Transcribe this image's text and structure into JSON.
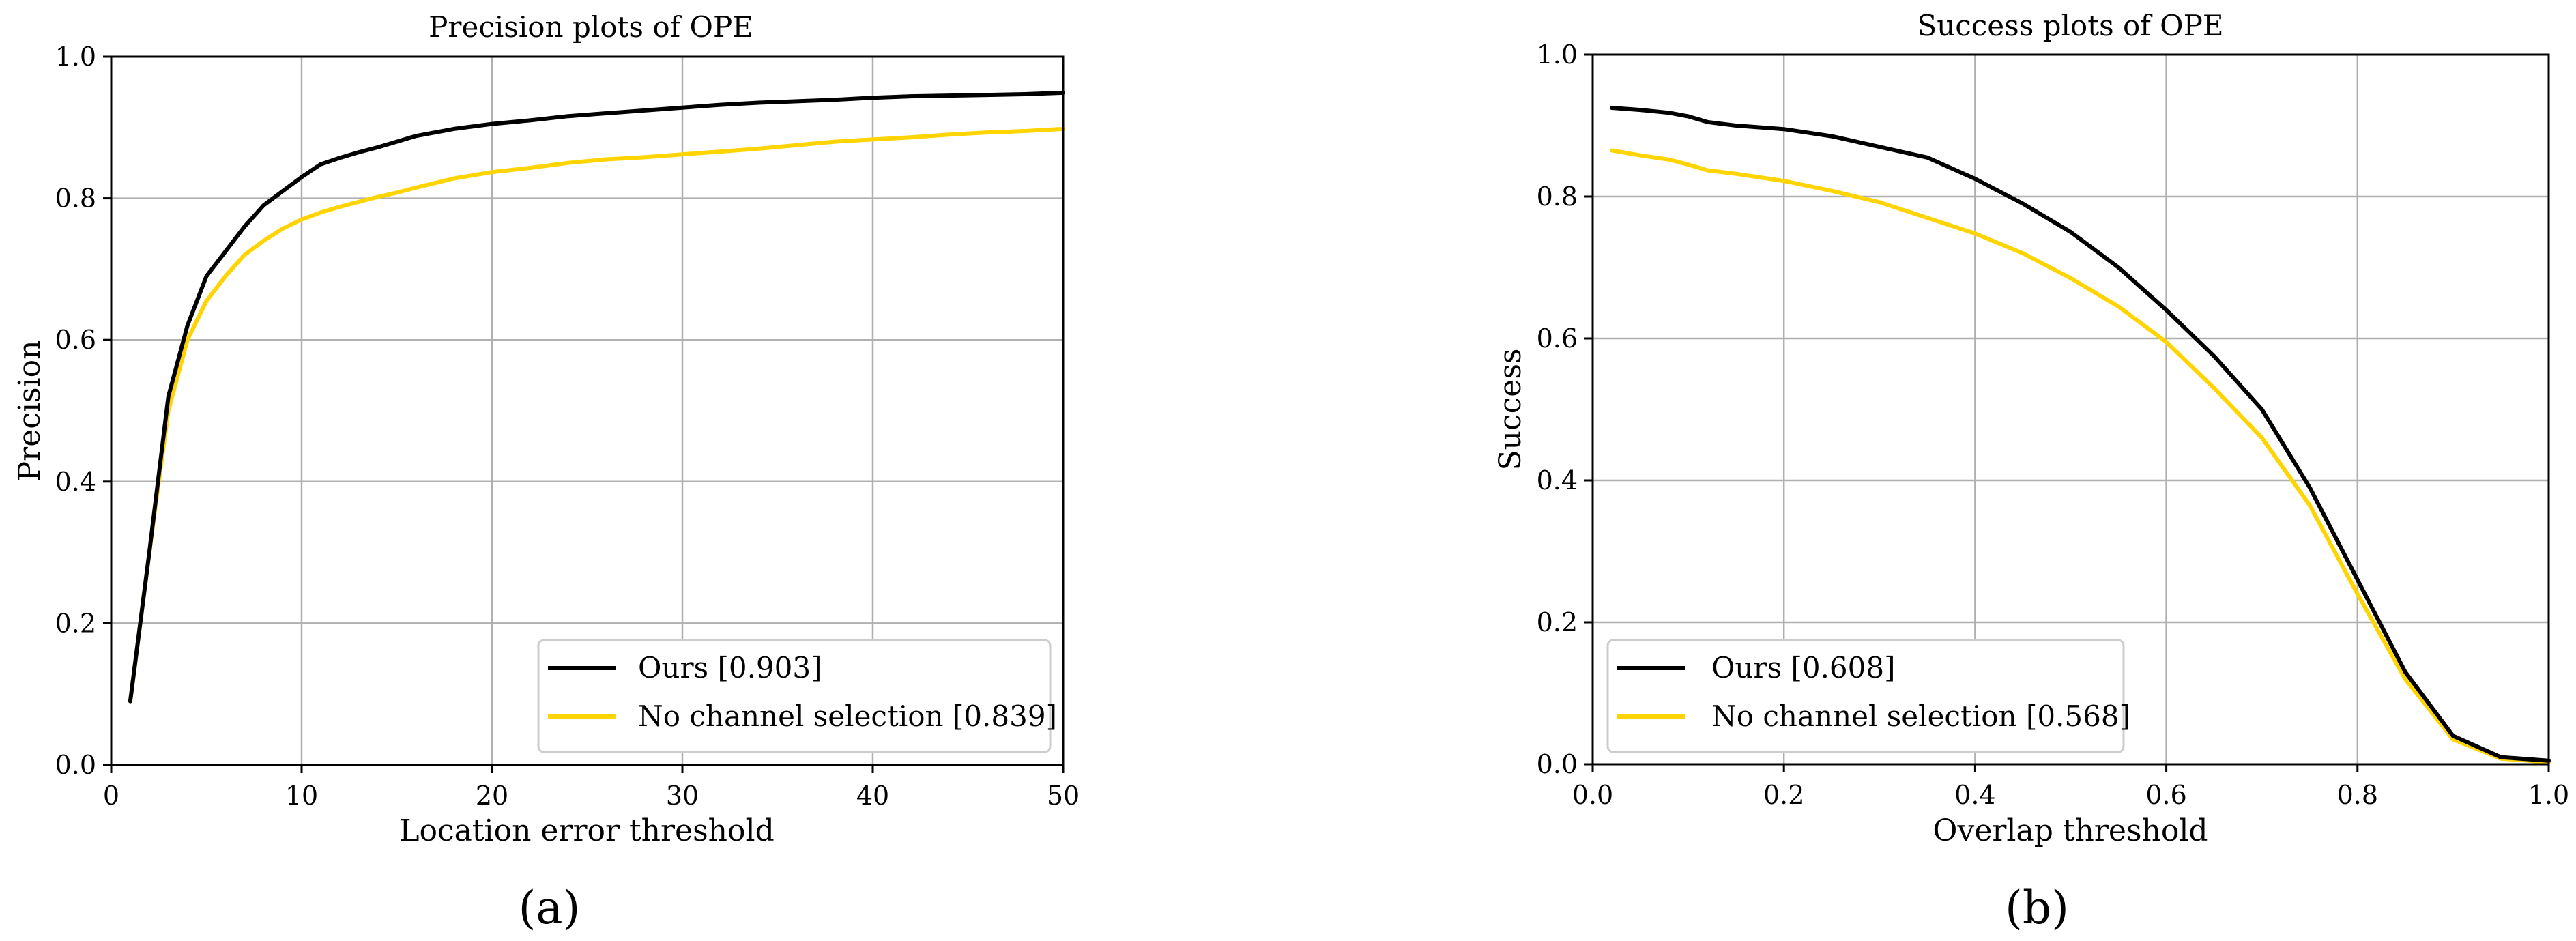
{
  "chart_data": [
    {
      "panel": "a",
      "panel_label": "(a)",
      "type": "line",
      "title": "Precision plots of OPE",
      "xlabel": "Location error threshold",
      "ylabel": "Precision",
      "xlim": [
        0,
        50
      ],
      "ylim": [
        0,
        1.0
      ],
      "xticks": [
        0,
        10,
        20,
        30,
        40,
        50
      ],
      "xtick_labels": [
        "0",
        "10",
        "20",
        "30",
        "40",
        "50"
      ],
      "yticks": [
        0,
        0.2,
        0.4,
        0.6,
        0.8,
        1.0
      ],
      "ytick_labels": [
        "0.0",
        "0.2",
        "0.4",
        "0.6",
        "0.8",
        "1.0"
      ],
      "grid": true,
      "legend_position": "bottom-right",
      "series": [
        {
          "name": "Ours [0.903]",
          "color": "#000000",
          "x": [
            1,
            2,
            3,
            4,
            5,
            6,
            7,
            8,
            9,
            10,
            11,
            12,
            13,
            14,
            15,
            16,
            18,
            20,
            22,
            24,
            26,
            28,
            30,
            32,
            34,
            36,
            38,
            40,
            42,
            44,
            46,
            48,
            50
          ],
          "y": [
            0.09,
            0.3,
            0.52,
            0.62,
            0.69,
            0.725,
            0.76,
            0.79,
            0.81,
            0.83,
            0.848,
            0.857,
            0.865,
            0.872,
            0.88,
            0.888,
            0.898,
            0.905,
            0.91,
            0.916,
            0.92,
            0.924,
            0.928,
            0.932,
            0.935,
            0.937,
            0.939,
            0.942,
            0.944,
            0.945,
            0.946,
            0.947,
            0.949
          ]
        },
        {
          "name": "No channel selection [0.839]",
          "color": "#FFD400",
          "x": [
            1,
            2,
            3,
            4,
            5,
            6,
            7,
            8,
            9,
            10,
            11,
            12,
            13,
            14,
            15,
            16,
            18,
            20,
            22,
            24,
            26,
            28,
            30,
            32,
            34,
            36,
            38,
            40,
            42,
            44,
            46,
            48,
            50
          ],
          "y": [
            0.09,
            0.3,
            0.5,
            0.6,
            0.655,
            0.69,
            0.72,
            0.74,
            0.757,
            0.77,
            0.78,
            0.788,
            0.795,
            0.802,
            0.808,
            0.815,
            0.828,
            0.837,
            0.843,
            0.85,
            0.855,
            0.858,
            0.862,
            0.866,
            0.87,
            0.875,
            0.88,
            0.883,
            0.886,
            0.89,
            0.893,
            0.895,
            0.898
          ]
        }
      ]
    },
    {
      "panel": "b",
      "panel_label": "(b)",
      "type": "line",
      "title": "Success plots of OPE",
      "xlabel": "Overlap threshold",
      "ylabel": "Success",
      "xlim": [
        0,
        1.0
      ],
      "ylim": [
        0,
        1.0
      ],
      "xticks": [
        0,
        0.2,
        0.4,
        0.6,
        0.8,
        1.0
      ],
      "xtick_labels": [
        "0.0",
        "0.2",
        "0.4",
        "0.6",
        "0.8",
        "1.0"
      ],
      "yticks": [
        0,
        0.2,
        0.4,
        0.6,
        0.8,
        1.0
      ],
      "ytick_labels": [
        "0.0",
        "0.2",
        "0.4",
        "0.6",
        "0.8",
        "1.0"
      ],
      "grid": true,
      "legend_position": "bottom-left",
      "series": [
        {
          "name": "Ours [0.608]",
          "color": "#000000",
          "x": [
            0.02,
            0.05,
            0.08,
            0.1,
            0.12,
            0.15,
            0.18,
            0.2,
            0.25,
            0.3,
            0.35,
            0.4,
            0.45,
            0.5,
            0.55,
            0.6,
            0.65,
            0.7,
            0.75,
            0.8,
            0.85,
            0.9,
            0.95,
            1.0
          ],
          "y": [
            0.925,
            0.922,
            0.918,
            0.913,
            0.905,
            0.9,
            0.897,
            0.895,
            0.885,
            0.87,
            0.855,
            0.825,
            0.79,
            0.75,
            0.7,
            0.64,
            0.575,
            0.5,
            0.39,
            0.26,
            0.13,
            0.04,
            0.01,
            0.005
          ]
        },
        {
          "name": "No channel selection [0.568]",
          "color": "#FFD400",
          "x": [
            0.02,
            0.05,
            0.08,
            0.1,
            0.12,
            0.15,
            0.18,
            0.2,
            0.25,
            0.3,
            0.35,
            0.4,
            0.45,
            0.5,
            0.55,
            0.6,
            0.65,
            0.7,
            0.75,
            0.8,
            0.85,
            0.9,
            0.95,
            1.0
          ],
          "y": [
            0.865,
            0.858,
            0.852,
            0.845,
            0.837,
            0.832,
            0.826,
            0.822,
            0.808,
            0.792,
            0.77,
            0.748,
            0.72,
            0.685,
            0.645,
            0.595,
            0.53,
            0.46,
            0.365,
            0.24,
            0.12,
            0.035,
            0.008,
            0.003
          ]
        }
      ]
    }
  ]
}
